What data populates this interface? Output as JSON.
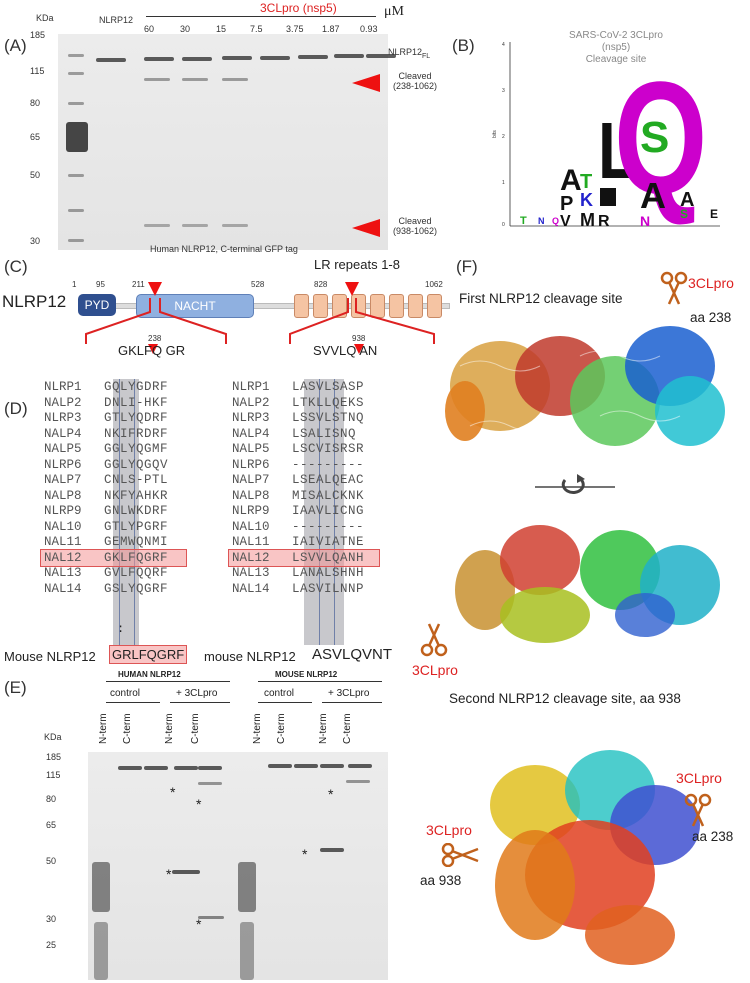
{
  "panelA": {
    "label": "(A)",
    "kda": "KDa",
    "markers": [
      "185",
      "115",
      "80",
      "65",
      "50",
      "30"
    ],
    "nlrp12": "NLRP12",
    "enzyme": "3CLpro (nsp5)",
    "unit": "μM",
    "concentrations": [
      "60",
      "30",
      "15",
      "7.5",
      "3.75",
      "1.87",
      "0.93"
    ],
    "fl_label": "NLRP12",
    "fl_sub": "FL",
    "cleaved1": "Cleaved",
    "cleaved1_range": "(238-1062)",
    "cleaved2": "Cleaved",
    "cleaved2_range": "(938-1062)",
    "caption": "Human NLRP12, C-terminal GFP tag"
  },
  "panelB": {
    "label": "(B)",
    "title1": "SARS-CoV-2 3CLpro (nsp5)",
    "title2": "Cleavage site",
    "yticks": [
      "4",
      "3",
      "2",
      "1",
      "0"
    ],
    "ylabel": "bits"
  },
  "panelC": {
    "label": "(C)",
    "protein": "NLRP12",
    "pos": [
      "1",
      "95",
      "211",
      "528",
      "828",
      "1062"
    ],
    "pyd": "PYD",
    "nacht": "NACHT",
    "lr": "LR repeats 1-8",
    "site1_num": "238",
    "site1_seq": "GKLFQ GR",
    "site2_num": "938",
    "site2_seq": "SVVLQ AN"
  },
  "panelD": {
    "label": "(D)",
    "left": [
      [
        "NLRP1",
        "GQLYGDRF"
      ],
      [
        "NALP2",
        "DNLI-HKF"
      ],
      [
        "NLRP3",
        "GTLYQDRF"
      ],
      [
        "NALP4",
        "NKIFRDRF"
      ],
      [
        "NALP5",
        "GGLYQGMF"
      ],
      [
        "NLRP6",
        "GGLYQGQV"
      ],
      [
        "NALP7",
        "CNLS-PTL"
      ],
      [
        "NALP8",
        "NKFYAHKR"
      ],
      [
        "NLRP9",
        "GNLWKDRF"
      ],
      [
        "NAL10",
        "GTLYPGRF"
      ],
      [
        "NAL11",
        "GEMWQNMI"
      ],
      [
        "NAL12",
        "GKLFQGRF"
      ],
      [
        "NAL13",
        "GVLFQQRF"
      ],
      [
        "NAL14",
        "GSLYQGRF"
      ]
    ],
    "right": [
      [
        "NLRP1",
        "LASVLSASP"
      ],
      [
        "NALP2",
        "LTKLLQEKS"
      ],
      [
        "NLRP3",
        "LSSVLSTNQ"
      ],
      [
        "NALP4",
        "LSALISNQ"
      ],
      [
        "NALP5",
        "LSCVISRSR"
      ],
      [
        "NLRP6",
        "---------"
      ],
      [
        "NALP7",
        "LSEALQEAC"
      ],
      [
        "NALP8",
        "MISALCKNK"
      ],
      [
        "NLRP9",
        "IAAVLICNG"
      ],
      [
        "NAL10",
        "---------"
      ],
      [
        "NAL11",
        "IAIVIATNE"
      ],
      [
        "NAL12",
        "LSVVLQANH"
      ],
      [
        "NAL13",
        "LANALSHNH"
      ],
      [
        "NAL14",
        "LASVILNNP"
      ]
    ],
    "dots": ":",
    "mouse_left_label": "Mouse NLRP12",
    "mouse_left_seq": "GRLFQGRF",
    "mouse_right_label": "mouse NLRP12",
    "mouse_right_seq": "ASVLQVNT"
  },
  "panelE": {
    "label": "(E)",
    "human": "HUMAN NLRP12",
    "mouse": "MOUSE NLRP12",
    "control": "control",
    "plus": "+ 3CLpro",
    "lanes": [
      "N-term",
      "C-term",
      "N-term",
      "C-term",
      "N-term",
      "C-term",
      "N-term",
      "C-term"
    ],
    "kda": "KDa",
    "markers": [
      "185",
      "115",
      "80",
      "65",
      "50",
      "30",
      "25"
    ],
    "star": "*"
  },
  "panelF": {
    "label": "(F)",
    "enzyme": "3CLpro",
    "site1_title": "First NLRP12 cleavage site",
    "site1_aa": "aa 238",
    "site2_title": "Second NLRP12 cleavage site, aa 938",
    "bottom_aa238": "aa 238",
    "bottom_aa938": "aa 938"
  },
  "colors": {
    "cleave_red": "#e11111",
    "pyd": "#2f4f8f",
    "nacht": "#8fb0e0",
    "lrr": "#f5c4a3",
    "highlight": "#f4a6a6",
    "scissors": "#c0611c"
  }
}
